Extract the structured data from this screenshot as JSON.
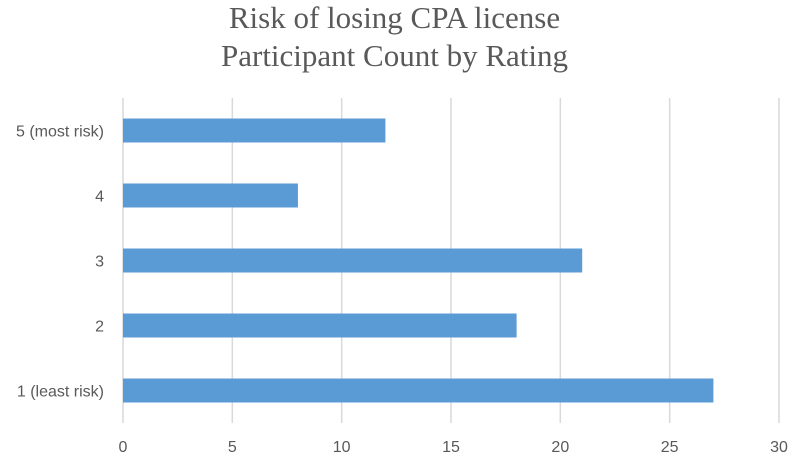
{
  "chart_data": {
    "type": "bar",
    "orientation": "horizontal",
    "title": "Risk of losing CPA license",
    "subtitle": "Participant Count by Rating",
    "categories": [
      "5 (most risk)",
      "4",
      "3",
      "2",
      "1 (least risk)"
    ],
    "values": [
      12,
      8,
      21,
      18,
      27
    ],
    "xlim": [
      0,
      30
    ],
    "x_ticks": [
      "0",
      "5",
      "10",
      "15",
      "20",
      "25",
      "30"
    ],
    "grid": "vertical",
    "bar_color": "#5B9BD5",
    "grid_color": "#D9D9D9"
  }
}
